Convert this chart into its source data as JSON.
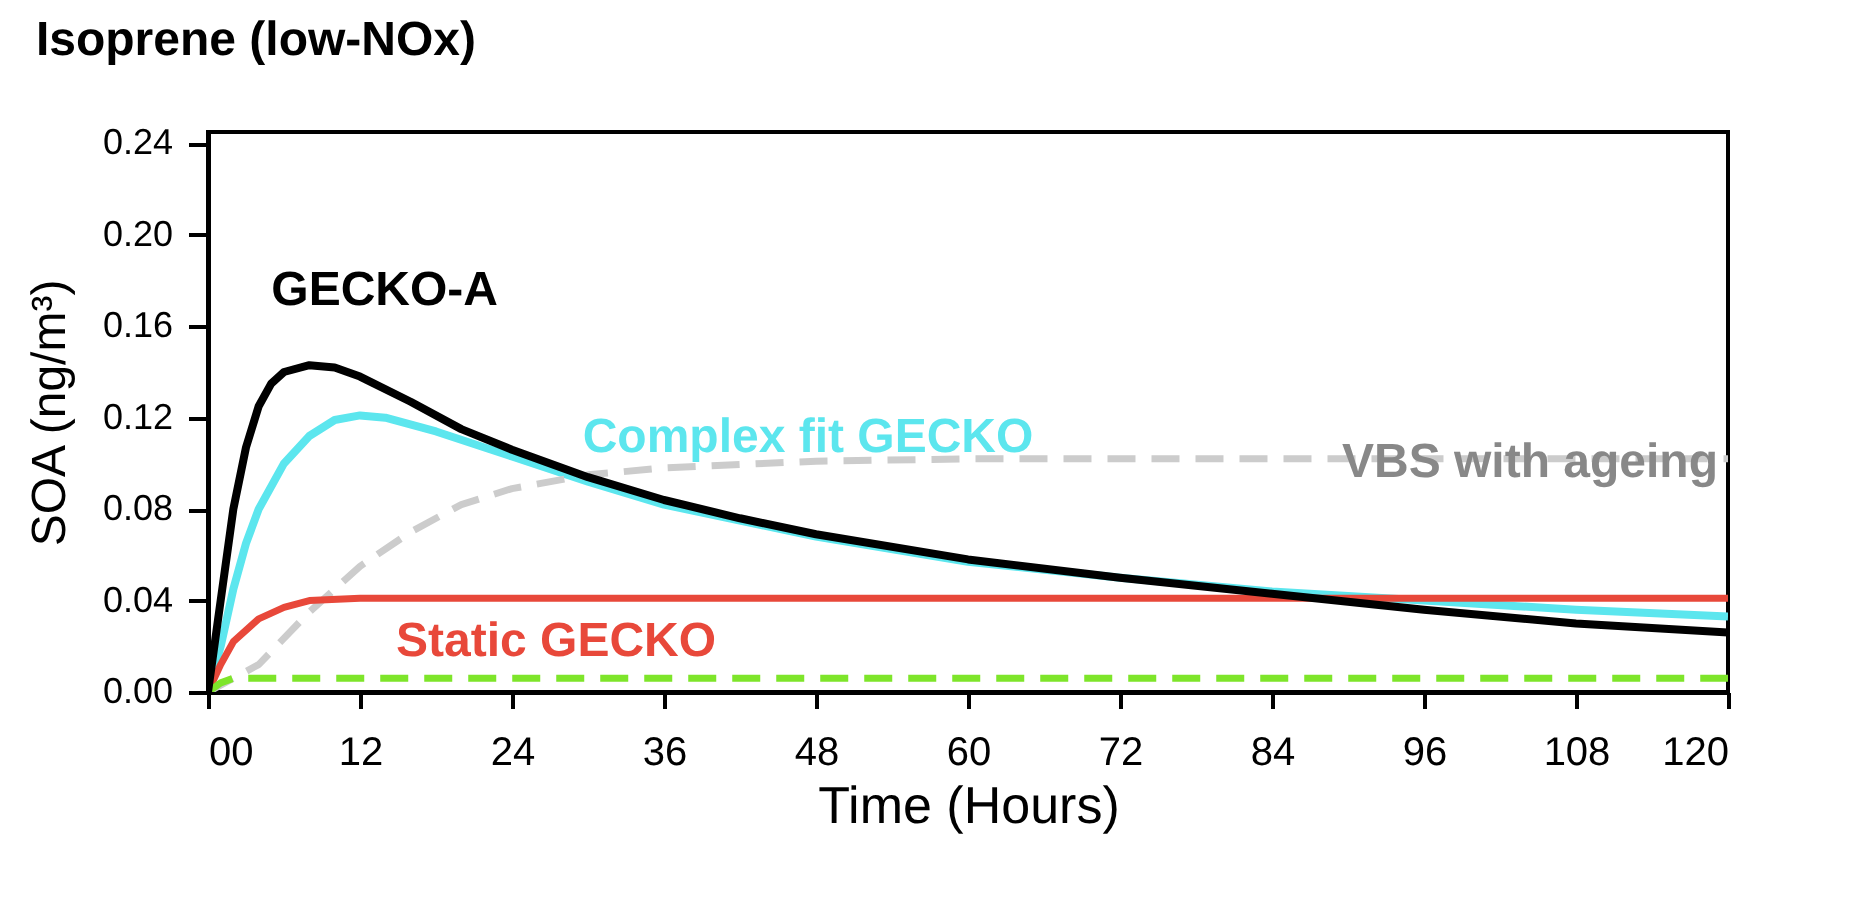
{
  "chart_data": {
    "type": "line",
    "title": "Isoprene (low-NOx)",
    "xlabel": "Time (Hours)",
    "ylabel": "SOA (ng/m³)",
    "xlim": [
      0,
      120
    ],
    "ylim": [
      0,
      0.245
    ],
    "xticks": [
      {
        "value": 0,
        "label": "00"
      },
      12,
      24,
      36,
      48,
      60,
      72,
      84,
      96,
      108,
      120
    ],
    "yticks": [
      {
        "value": 0,
        "label": "0.00"
      },
      0.04,
      0.08,
      0.12,
      0.16,
      {
        "value": 0.2,
        "label": "0.20"
      },
      0.24
    ],
    "grid": false,
    "series": [
      {
        "name": "GECKO-A",
        "color": "#000000",
        "line_style": "solid",
        "x": [
          0,
          1,
          2,
          3,
          4,
          5,
          6,
          8,
          10,
          12,
          16,
          20,
          24,
          30,
          36,
          42,
          48,
          60,
          72,
          84,
          96,
          108,
          120
        ],
        "values": [
          0,
          0.04,
          0.08,
          0.107,
          0.125,
          0.135,
          0.14,
          0.143,
          0.142,
          0.138,
          0.127,
          0.115,
          0.106,
          0.094,
          0.084,
          0.076,
          0.069,
          0.058,
          0.05,
          0.043,
          0.036,
          0.03,
          0.026
        ]
      },
      {
        "name": "Complex fit GECKO",
        "color": "#5ce6ee",
        "line_style": "solid",
        "x": [
          0,
          1,
          2,
          3,
          4,
          6,
          8,
          10,
          12,
          14,
          18,
          24,
          30,
          36,
          48,
          60,
          72,
          84,
          96,
          108,
          120
        ],
        "values": [
          0,
          0.02,
          0.045,
          0.065,
          0.08,
          0.1,
          0.112,
          0.119,
          0.121,
          0.12,
          0.114,
          0.103,
          0.092,
          0.082,
          0.068,
          0.057,
          0.05,
          0.044,
          0.04,
          0.036,
          0.033
        ]
      },
      {
        "name": "VBS with ageing",
        "color": "#cccccc",
        "line_style": "dashed",
        "x": [
          0,
          4,
          8,
          12,
          16,
          20,
          24,
          30,
          36,
          48,
          60,
          120
        ],
        "values": [
          0,
          0.012,
          0.035,
          0.055,
          0.07,
          0.082,
          0.089,
          0.095,
          0.098,
          0.101,
          0.102,
          0.102
        ]
      },
      {
        "name": "Static GECKO",
        "color": "#e8483a",
        "line_style": "solid",
        "x": [
          0,
          1,
          2,
          4,
          6,
          8,
          12,
          120
        ],
        "values": [
          0,
          0.012,
          0.022,
          0.032,
          0.037,
          0.04,
          0.041,
          0.041
        ]
      },
      {
        "color": "#7ee52a",
        "line_style": "dashed",
        "x": [
          0,
          1,
          2,
          120
        ],
        "values": [
          0,
          0.004,
          0.006,
          0.006
        ]
      }
    ]
  }
}
